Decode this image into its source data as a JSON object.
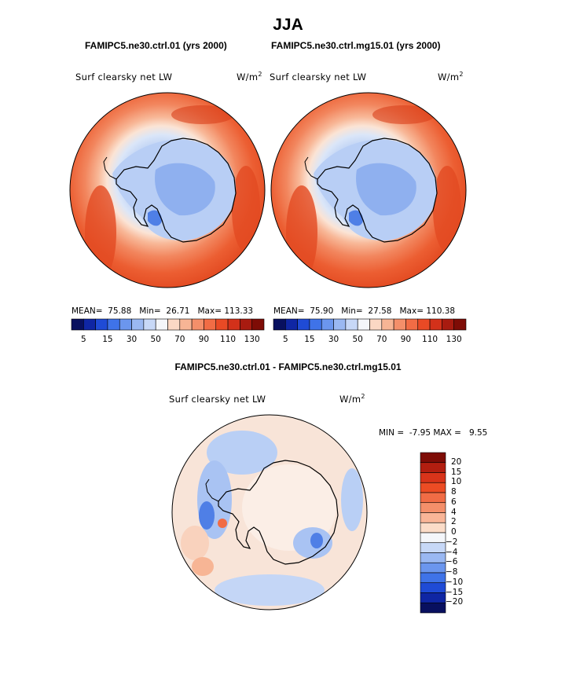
{
  "figure": {
    "season": "JJA",
    "panels": [
      {
        "case": "FAMIPC5.ne30.ctrl.01 (yrs 2000)",
        "variable": "Surf clearsky net LW",
        "units_base": "W/m",
        "units_exp": "2",
        "mean_label": "MEAN=",
        "mean": "75.88",
        "min_label": "Min=",
        "min": "26.71",
        "max_label": "Max=",
        "max": "113.33"
      },
      {
        "case": "FAMIPC5.ne30.ctrl.mg15.01 (yrs 2000)",
        "variable": "Surf clearsky net LW",
        "units_base": "W/m",
        "units_exp": "2",
        "mean_label": "MEAN=",
        "mean": "75.90",
        "min_label": "Min=",
        "min": "27.58",
        "max_label": "Max=",
        "max": "110.38"
      }
    ],
    "diff": {
      "title": "FAMIPC5.ne30.ctrl.01 - FAMIPC5.ne30.ctrl.mg15.01",
      "variable": "Surf clearsky net LW",
      "units_base": "W/m",
      "units_exp": "2",
      "min_label": "MIN =",
      "min": "-7.95",
      "max_label": "MAX =",
      "max": "9.55"
    }
  },
  "colorbar_main": {
    "colors": [
      "#08105f",
      "#0f26a4",
      "#1f4bd6",
      "#3f73e8",
      "#6b96ee",
      "#9ab8f2",
      "#c7d8f7",
      "#f4f6fa",
      "#fbd8c4",
      "#f7b595",
      "#f48f6a",
      "#f16c45",
      "#e94a25",
      "#d3311a",
      "#a81b10",
      "#7e0c06"
    ],
    "tick_labels": [
      "5",
      "15",
      "30",
      "50",
      "70",
      "90",
      "110",
      "130"
    ]
  },
  "colorbar_diff": {
    "colors": [
      "#7e0c06",
      "#b21e10",
      "#d8341a",
      "#ec4c24",
      "#f16c45",
      "#f48f6a",
      "#f9b597",
      "#fbdcc8",
      "#f4f6fa",
      "#c7d8f7",
      "#9ab8f2",
      "#6b96ee",
      "#3f73e8",
      "#1f4bd6",
      "#0f26a4",
      "#08105f"
    ],
    "tick_labels": [
      "20",
      "15",
      "10",
      "8",
      "6",
      "4",
      "2",
      "0",
      "−2",
      "−4",
      "−6",
      "−8",
      "−10",
      "−15",
      "−20"
    ]
  },
  "colors": {
    "ocean_warm": "#ec5a2e",
    "mid_ring": "#f6a07a",
    "ice_light": "#c9dbf7",
    "ice_mid": "#9ebcf1",
    "ice_deep": "#7ea3ee",
    "diff_base": "#f8e1d3",
    "diff_blue": "#b9cff5",
    "coast": "#000000"
  }
}
